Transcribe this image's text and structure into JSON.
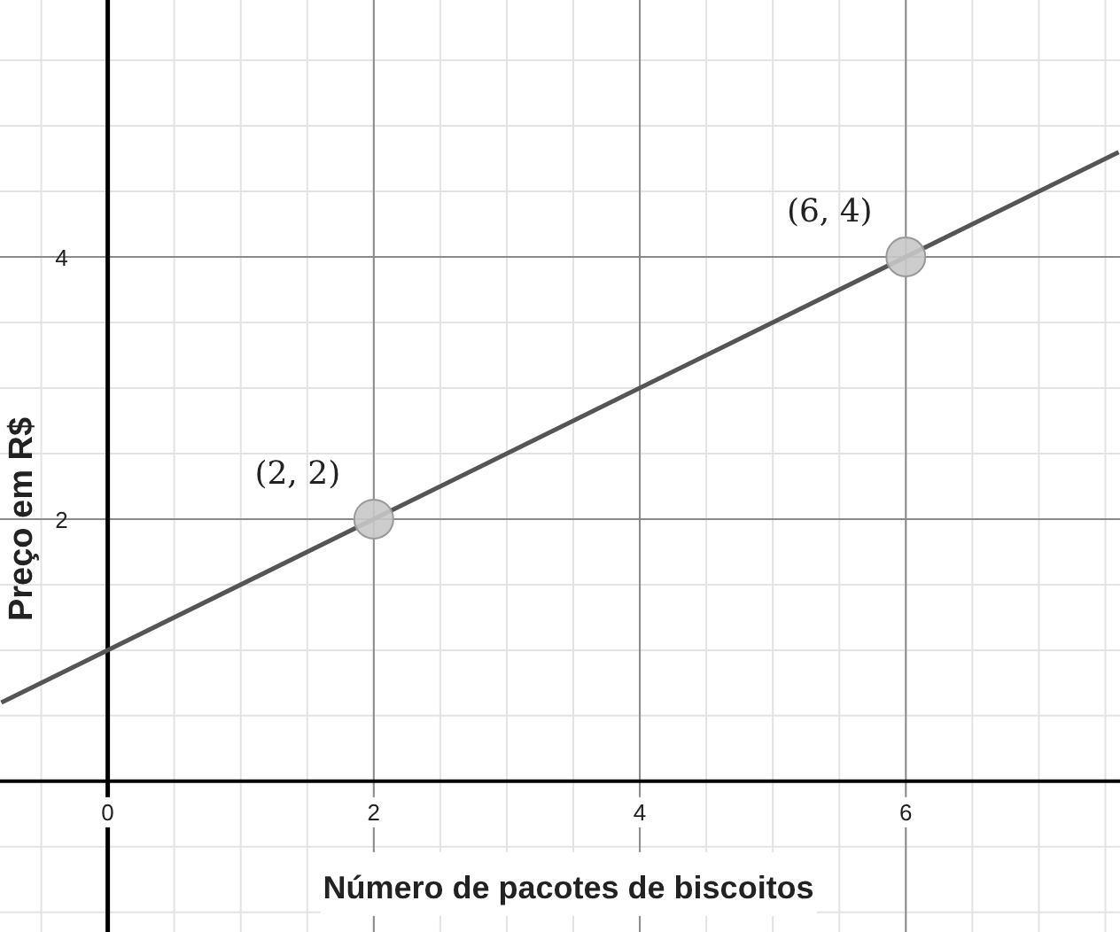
{
  "chart_data": {
    "type": "line",
    "xlabel": "Número de pacotes de biscoitos",
    "ylabel": "Preço em R$",
    "xlim": [
      -0.81,
      7.61
    ],
    "ylim": [
      -1.15,
      5.96
    ],
    "xticks": [
      0,
      2,
      4,
      6
    ],
    "yticks": [
      2,
      4
    ],
    "grid": true,
    "series": [
      {
        "color": "#555555",
        "x": [
          -0.8,
          7.6
        ],
        "values": [
          0.6,
          4.8
        ]
      },
      {
        "type": "scatter",
        "color": "#c8c8c8",
        "x": [
          2,
          6
        ],
        "values": [
          2,
          4
        ],
        "marker": "circle"
      }
    ],
    "annotations": [
      {
        "text": "(2, 2)",
        "x": 2,
        "y": 2
      },
      {
        "text": "(6, 4)",
        "x": 6,
        "y": 4
      }
    ]
  }
}
